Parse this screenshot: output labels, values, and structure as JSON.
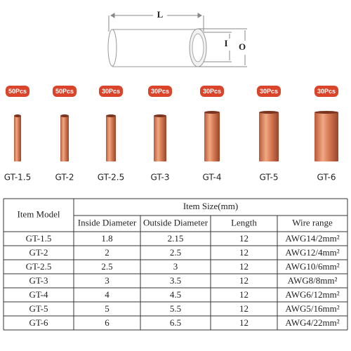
{
  "diagram": {
    "length_label": "L",
    "inner_label": "I",
    "outer_label": "O"
  },
  "products": [
    {
      "badge": "50Pcs",
      "name": "GT-1.5"
    },
    {
      "badge": "50Pcs",
      "name": "GT-2"
    },
    {
      "badge": "30Pcs",
      "name": "GT-2.5"
    },
    {
      "badge": "30Pcs",
      "name": "GT-3"
    },
    {
      "badge": "30Pcs",
      "name": "GT-4"
    },
    {
      "badge": "30Pcs",
      "name": "GT-5"
    },
    {
      "badge": "30Pcs",
      "name": "GT-6"
    }
  ],
  "table": {
    "model_header": "Item Model",
    "size_header": "Item Size(mm)",
    "columns": [
      "Inside Diameter",
      "Outside Diameter",
      "Length",
      "Wire range"
    ],
    "rows": [
      [
        "GT-1.5",
        "1.8",
        "2.15",
        "12",
        "AWG14/2mm²"
      ],
      [
        "GT-2",
        "2",
        "2.5",
        "12",
        "AWG12/4mm²"
      ],
      [
        "GT-2.5",
        "2.5",
        "3",
        "12",
        "AWG10/6mm²"
      ],
      [
        "GT-3",
        "3",
        "3.5",
        "12",
        "AWG8/8mm²"
      ],
      [
        "GT-4",
        "4",
        "4.5",
        "12",
        "AWG6/12mm²"
      ],
      [
        "GT-5",
        "5",
        "5.5",
        "12",
        "AWG5/16mm²"
      ],
      [
        "GT-6",
        "6",
        "6.5",
        "12",
        "AWG4/22mm²"
      ]
    ]
  }
}
